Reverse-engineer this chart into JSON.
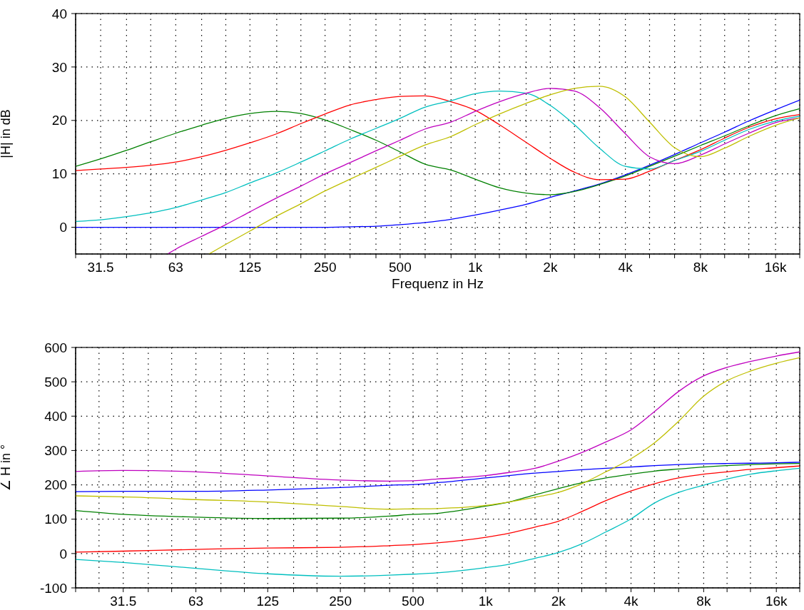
{
  "chart_data": [
    {
      "type": "line",
      "ylabel": "|H| in dB",
      "xlabel": "Frequenz in Hz",
      "log": "x",
      "grid": true,
      "x": [
        25,
        31.5,
        40,
        50,
        63,
        80,
        100,
        125,
        160,
        200,
        250,
        315,
        400,
        500,
        630,
        800,
        1000,
        1250,
        1600,
        2000,
        2500,
        3150,
        4000,
        5000,
        6300,
        8000,
        10000,
        12500,
        16000,
        20000
      ],
      "xlim": [
        25,
        20000
      ],
      "xticks": [
        {
          "value": 25,
          "label": null
        },
        31.5,
        {
          "value": 40,
          "label": null
        },
        {
          "value": 50,
          "label": null
        },
        63,
        {
          "value": 80,
          "label": null
        },
        {
          "value": 100,
          "label": null
        },
        125,
        {
          "value": 160,
          "label": null
        },
        {
          "value": 200,
          "label": null
        },
        250,
        {
          "value": 315,
          "label": null
        },
        {
          "value": 400,
          "label": null
        },
        500,
        {
          "value": 630,
          "label": null
        },
        {
          "value": 800,
          "label": null
        },
        {
          "value": 1000,
          "label": "1k"
        },
        {
          "value": 1250,
          "label": null
        },
        {
          "value": 1600,
          "label": null
        },
        {
          "value": 2000,
          "label": "2k"
        },
        {
          "value": 2500,
          "label": null
        },
        {
          "value": 3150,
          "label": null
        },
        {
          "value": 4000,
          "label": "4k"
        },
        {
          "value": 5000,
          "label": null
        },
        {
          "value": 6300,
          "label": null
        },
        {
          "value": 8000,
          "label": "8k"
        },
        {
          "value": 10000,
          "label": null
        },
        {
          "value": 12500,
          "label": null
        },
        {
          "value": 16000,
          "label": "16k"
        },
        {
          "value": 20000,
          "label": null
        }
      ],
      "ylim": [
        -5,
        40
      ],
      "yticks": [
        0,
        10,
        20,
        30,
        40
      ],
      "series": [
        {
          "color": "#0000ff",
          "values": [
            0,
            0,
            0,
            0,
            0,
            0,
            0,
            0,
            0,
            0,
            0,
            0.1,
            0.2,
            0.5,
            0.9,
            1.5,
            2.3,
            3.2,
            4.3,
            5.6,
            6.8,
            8.1,
            9.8,
            11.6,
            13.6,
            15.8,
            17.8,
            19.9,
            22,
            23.8
          ]
        },
        {
          "color": "#008000",
          "values": [
            11.4,
            12.8,
            14.4,
            16,
            17.6,
            19.1,
            20.4,
            21.3,
            21.7,
            21.3,
            20.1,
            18.3,
            16.3,
            14.1,
            11.8,
            10.7,
            9,
            7.4,
            6.4,
            6.1,
            6.7,
            8,
            9.6,
            11.4,
            13.3,
            15.3,
            17.1,
            19,
            20.9,
            22.2
          ]
        },
        {
          "color": "#ff0000",
          "values": [
            10.6,
            10.9,
            11.2,
            11.6,
            12.2,
            13.2,
            14.4,
            15.8,
            17.5,
            19.4,
            21.2,
            22.9,
            23.9,
            24.5,
            24.6,
            23.5,
            21.9,
            19.2,
            15.9,
            12.9,
            10.3,
            8.9,
            9,
            10.5,
            12.5,
            14.5,
            16.7,
            18.7,
            20.3,
            21.1
          ]
        },
        {
          "color": "#00bfbf",
          "values": [
            1.1,
            1.4,
            2,
            2.7,
            3.7,
            5.1,
            6.5,
            8.3,
            10.2,
            12.2,
            14.3,
            16.5,
            18.5,
            20.4,
            22.5,
            23.7,
            25,
            25.5,
            25.1,
            22.8,
            19.2,
            14.8,
            11.4,
            10.9,
            12.5,
            14.2,
            16.3,
            18.3,
            19.9,
            20.8
          ]
        },
        {
          "color": "#bf00bf",
          "x": [
            58.5,
            63,
            80,
            100,
            125,
            160,
            200,
            250,
            315,
            400,
            500,
            630,
            800,
            1000,
            1250,
            1600,
            2000,
            2500,
            3150,
            4000,
            5000,
            6300,
            8000,
            10000,
            12500,
            16000,
            20000
          ],
          "values": [
            -5,
            -4.1,
            -1.7,
            0.5,
            2.9,
            5.5,
            7.7,
            10,
            12.1,
            14.3,
            16.3,
            18.4,
            19.7,
            21.7,
            23.5,
            25.1,
            26,
            25.5,
            22.4,
            17.5,
            13.2,
            11.9,
            13.5,
            15.6,
            17.6,
            19.6,
            20.5
          ]
        },
        {
          "color": "#bfbf00",
          "x": [
            85.6,
            100,
            125,
            160,
            200,
            250,
            315,
            400,
            500,
            630,
            800,
            1000,
            1250,
            1600,
            2000,
            2500,
            3150,
            4000,
            5000,
            6300,
            8000,
            10000,
            12500,
            16000,
            20000
          ],
          "values": [
            -5,
            -3.2,
            -0.7,
            2.1,
            4.4,
            6.8,
            9,
            11.2,
            13.3,
            15.4,
            17,
            19.2,
            21.2,
            23.2,
            24.8,
            26,
            26.4,
            24.4,
            19.7,
            14.9,
            13.2,
            14.8,
            17,
            19.1,
            20.5
          ]
        }
      ]
    },
    {
      "type": "line",
      "ylabel": "∠ H in °",
      "log": "x",
      "grid": true,
      "x": [
        20,
        31.5,
        63,
        125,
        250,
        400,
        500,
        630,
        1000,
        1250,
        1600,
        2000,
        2500,
        3150,
        4000,
        5000,
        6300,
        8000,
        10000,
        12500,
        16000,
        20000
      ],
      "xlim": [
        20,
        20000
      ],
      "xticks": [
        {
          "value": 20,
          "label": null
        },
        {
          "value": 25,
          "label": null
        },
        31.5,
        {
          "value": 40,
          "label": null
        },
        {
          "value": 50,
          "label": null
        },
        63,
        {
          "value": 80,
          "label": null
        },
        {
          "value": 100,
          "label": null
        },
        125,
        {
          "value": 160,
          "label": null
        },
        {
          "value": 200,
          "label": null
        },
        250,
        {
          "value": 315,
          "label": null
        },
        {
          "value": 400,
          "label": null
        },
        500,
        {
          "value": 630,
          "label": null
        },
        {
          "value": 800,
          "label": null
        },
        {
          "value": 1000,
          "label": "1k"
        },
        {
          "value": 1250,
          "label": null
        },
        {
          "value": 1600,
          "label": null
        },
        {
          "value": 2000,
          "label": "2k"
        },
        {
          "value": 2500,
          "label": null
        },
        {
          "value": 3150,
          "label": null
        },
        {
          "value": 4000,
          "label": "4k"
        },
        {
          "value": 5000,
          "label": null
        },
        {
          "value": 6300,
          "label": null
        },
        {
          "value": 8000,
          "label": "8k"
        },
        {
          "value": 10000,
          "label": null
        },
        {
          "value": 12500,
          "label": null
        },
        {
          "value": 16000,
          "label": "16k"
        },
        {
          "value": 20000,
          "label": null
        }
      ],
      "ylim": [
        -100,
        600
      ],
      "yticks": [
        -100,
        0,
        100,
        200,
        300,
        400,
        500,
        600
      ],
      "series": [
        {
          "color": "#0000ff",
          "values": [
            180,
            181,
            181,
            185,
            192,
            199,
            201,
            206,
            220,
            227,
            234,
            239,
            244,
            248,
            252,
            256,
            259,
            261,
            262,
            263,
            264,
            266
          ]
        },
        {
          "color": "#008000",
          "values": [
            125,
            114,
            106,
            102,
            103,
            109,
            114,
            117,
            138,
            150,
            171,
            189,
            206,
            220,
            231,
            240,
            246,
            252,
            256,
            259,
            261,
            262
          ]
        },
        {
          "color": "#ff0000",
          "values": [
            4,
            7,
            12,
            16,
            18,
            23,
            26,
            31,
            47,
            59,
            77,
            94,
            122,
            154,
            182,
            203,
            220,
            231,
            238,
            245,
            250,
            255
          ]
        },
        {
          "color": "#00bfbf",
          "values": [
            -17,
            -26,
            -43,
            -59,
            -66,
            -63,
            -60,
            -56,
            -41,
            -31,
            -14,
            3,
            28,
            63,
            101,
            147,
            178,
            199,
            217,
            231,
            241,
            248
          ]
        },
        {
          "color": "#bf00bf",
          "values": [
            239,
            242,
            238,
            226,
            214,
            211,
            212,
            217,
            227,
            236,
            248,
            269,
            294,
            325,
            360,
            413,
            472,
            517,
            542,
            559,
            575,
            587
          ]
        },
        {
          "color": "#bfbf00",
          "values": [
            168,
            165,
            157,
            150,
            137,
            129,
            130,
            131,
            140,
            150,
            164,
            178,
            203,
            238,
            276,
            322,
            385,
            458,
            503,
            531,
            554,
            570
          ]
        }
      ]
    }
  ]
}
